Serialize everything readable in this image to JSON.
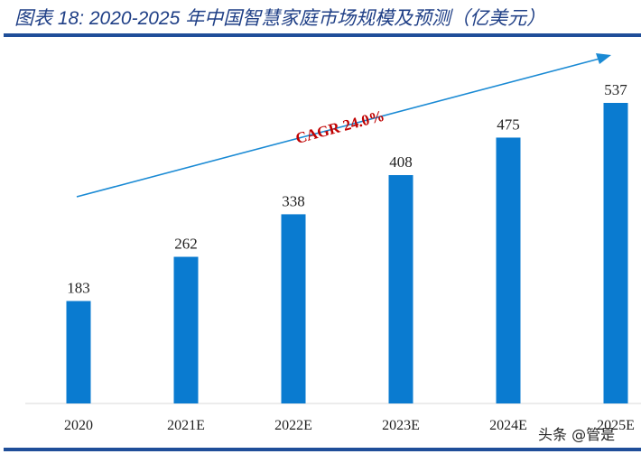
{
  "chart_data": {
    "type": "bar",
    "title": "图表 18: 2020-2025 年中国智慧家庭市场规模及预测（亿美元）",
    "categories": [
      "2020",
      "2021E",
      "2022E",
      "2023E",
      "2024E",
      "2025E"
    ],
    "values": [
      183,
      262,
      338,
      408,
      475,
      537
    ],
    "annotation": "CAGR 24.0%",
    "bar_color": "#0a7bd0",
    "annotation_color": "#c00000",
    "grid": false,
    "ylim": [
      0,
      560
    ]
  },
  "watermark": "头条 @管是"
}
